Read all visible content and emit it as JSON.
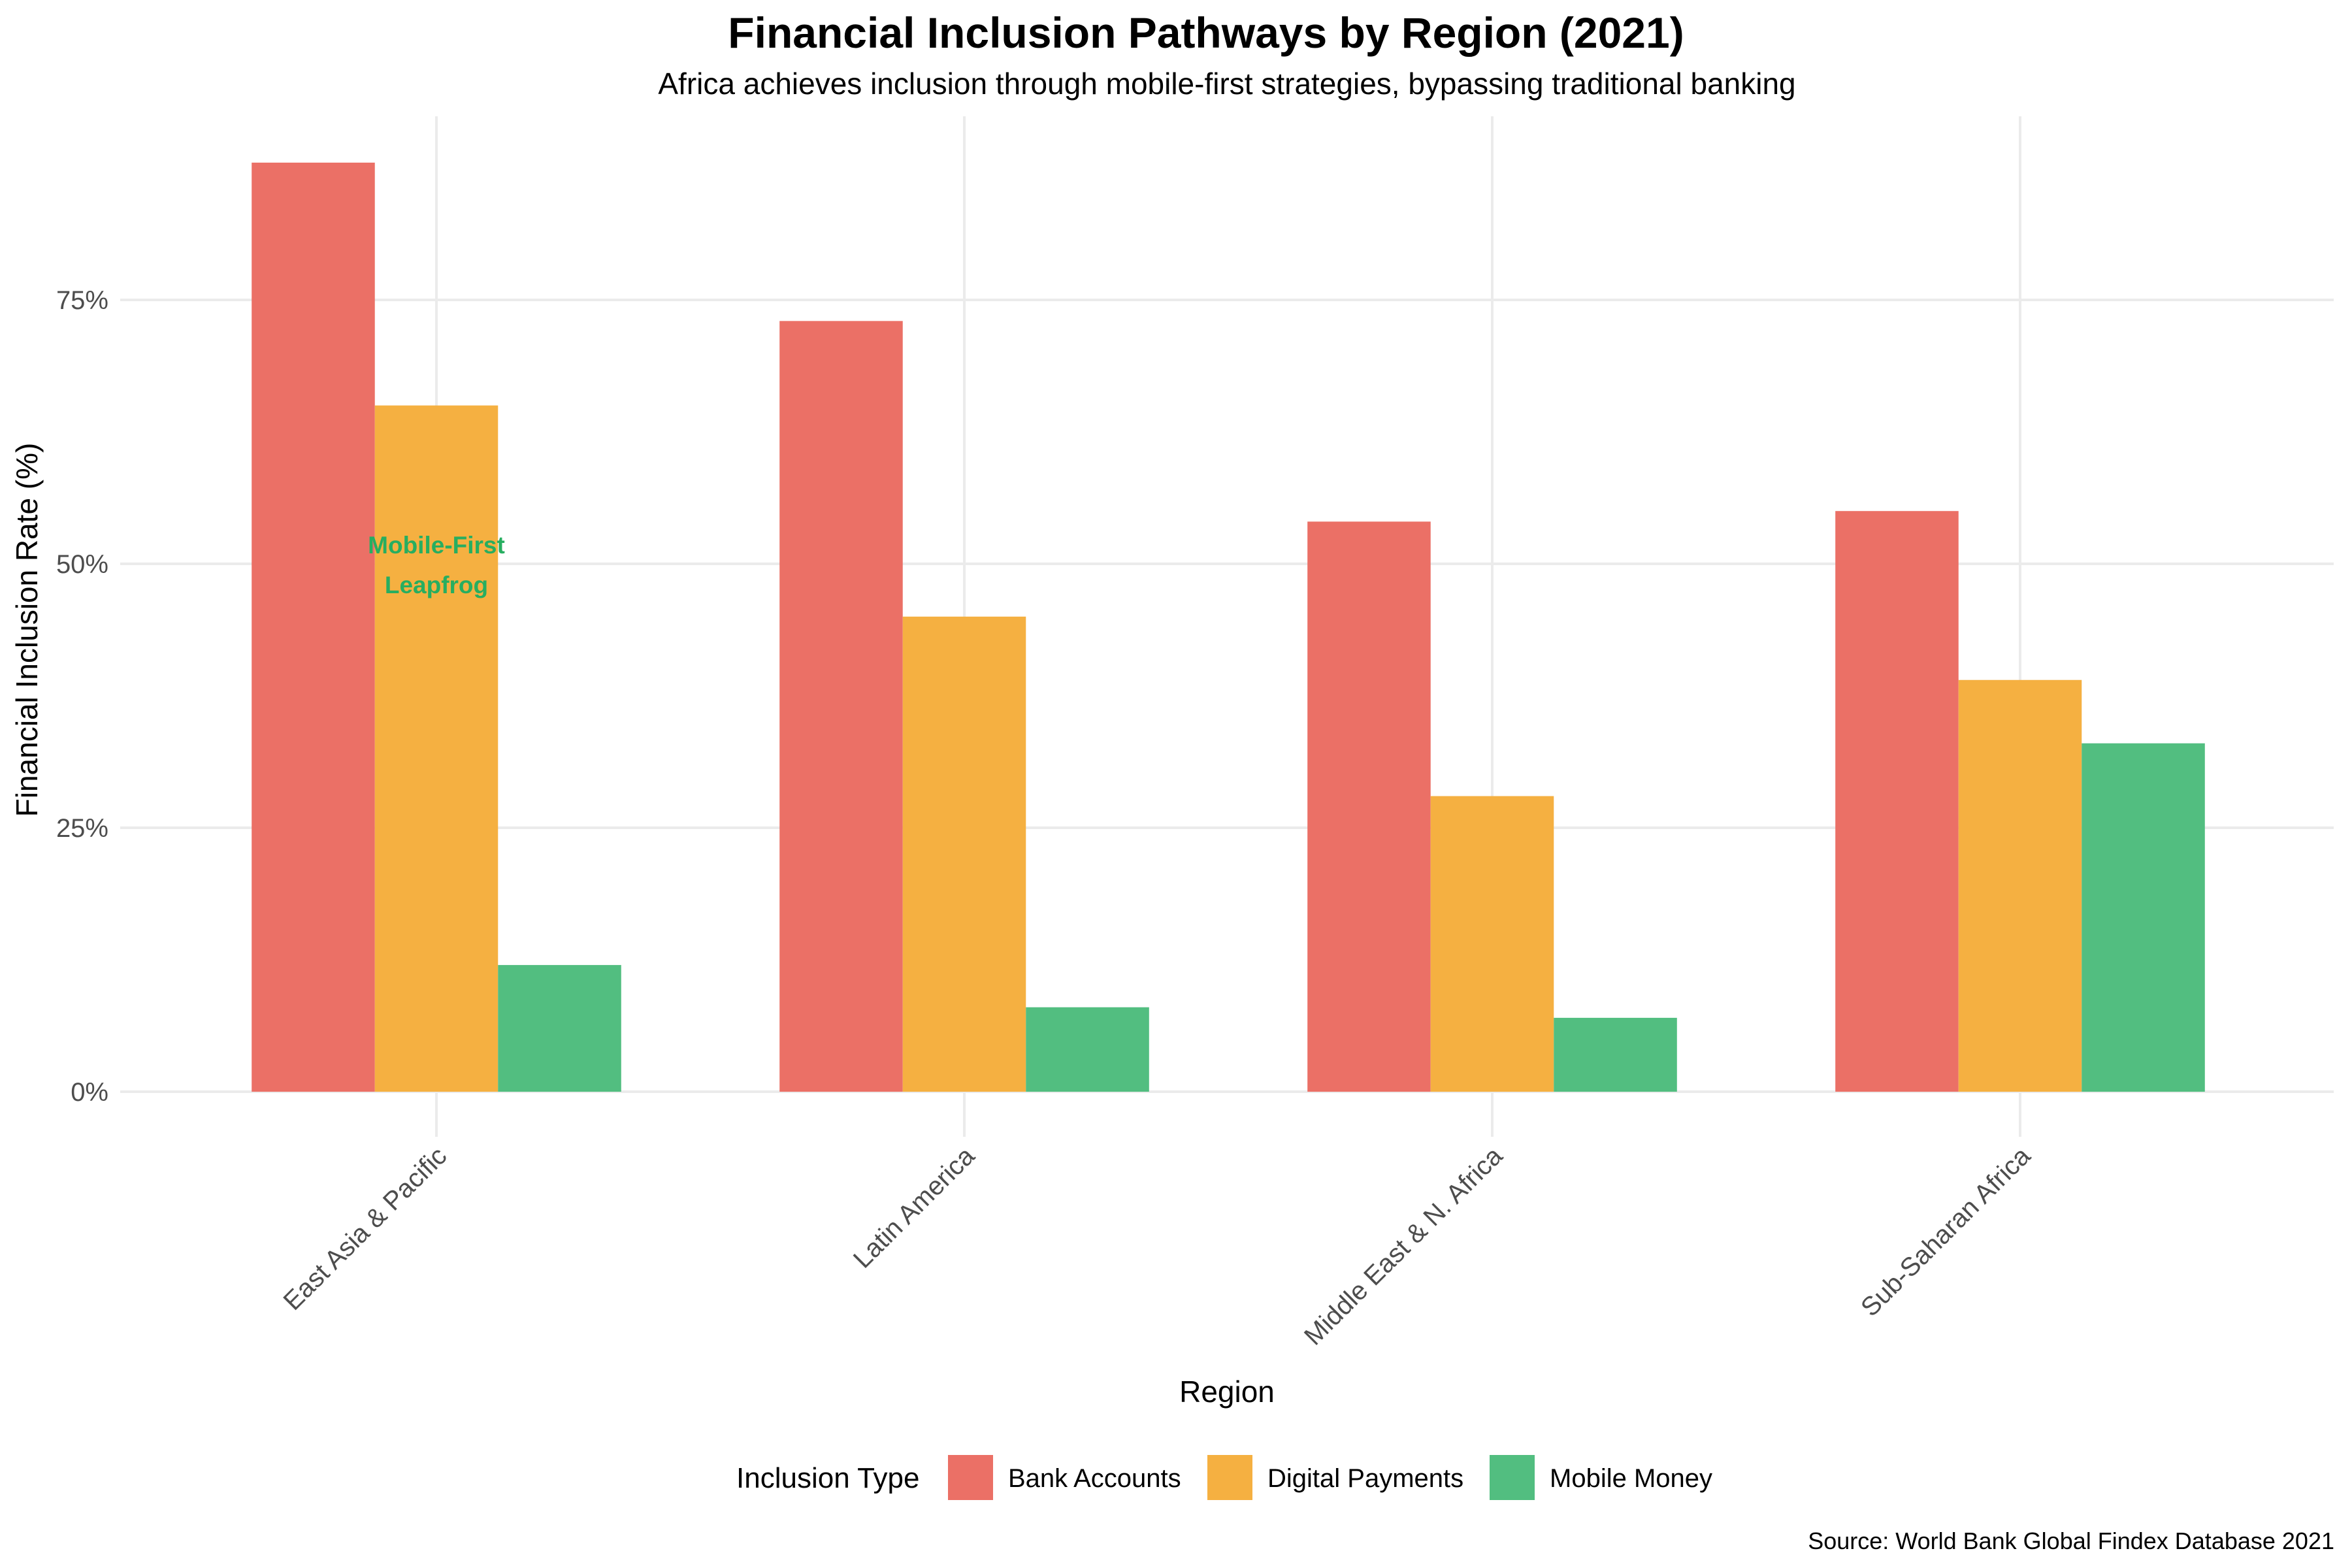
{
  "chart_data": {
    "type": "bar",
    "title": "Financial Inclusion Pathways by Region (2021)",
    "subtitle": "Africa achieves inclusion through mobile-first strategies, bypassing traditional banking",
    "xlabel": "Region",
    "ylabel": "Financial Inclusion Rate (%)",
    "caption": "Source: World Bank Global Findex Database 2021",
    "categories": [
      "East Asia & Pacific",
      "Latin America",
      "Middle East & N. Africa",
      "Sub-Saharan Africa"
    ],
    "series": [
      {
        "name": "Bank Accounts",
        "color": "#EB7066",
        "values": [
          88,
          73,
          54,
          55
        ]
      },
      {
        "name": "Digital Payments",
        "color": "#F5B041",
        "values": [
          65,
          45,
          28,
          39
        ]
      },
      {
        "name": "Mobile Money",
        "color": "#52BE80",
        "values": [
          12,
          8,
          7,
          33
        ]
      }
    ],
    "ylim": [
      0,
      92
    ],
    "yticks": [
      0,
      25,
      50,
      75
    ],
    "ytick_labels": [
      "0%",
      "25%",
      "50%",
      "75%"
    ],
    "grid": true,
    "legend": {
      "title": "Inclusion Type",
      "position": "bottom"
    },
    "annotation": {
      "lines": [
        "Mobile-First",
        "Leapfrog"
      ],
      "category": "East Asia & Pacific",
      "y": 50,
      "color": "#27AE60"
    }
  }
}
